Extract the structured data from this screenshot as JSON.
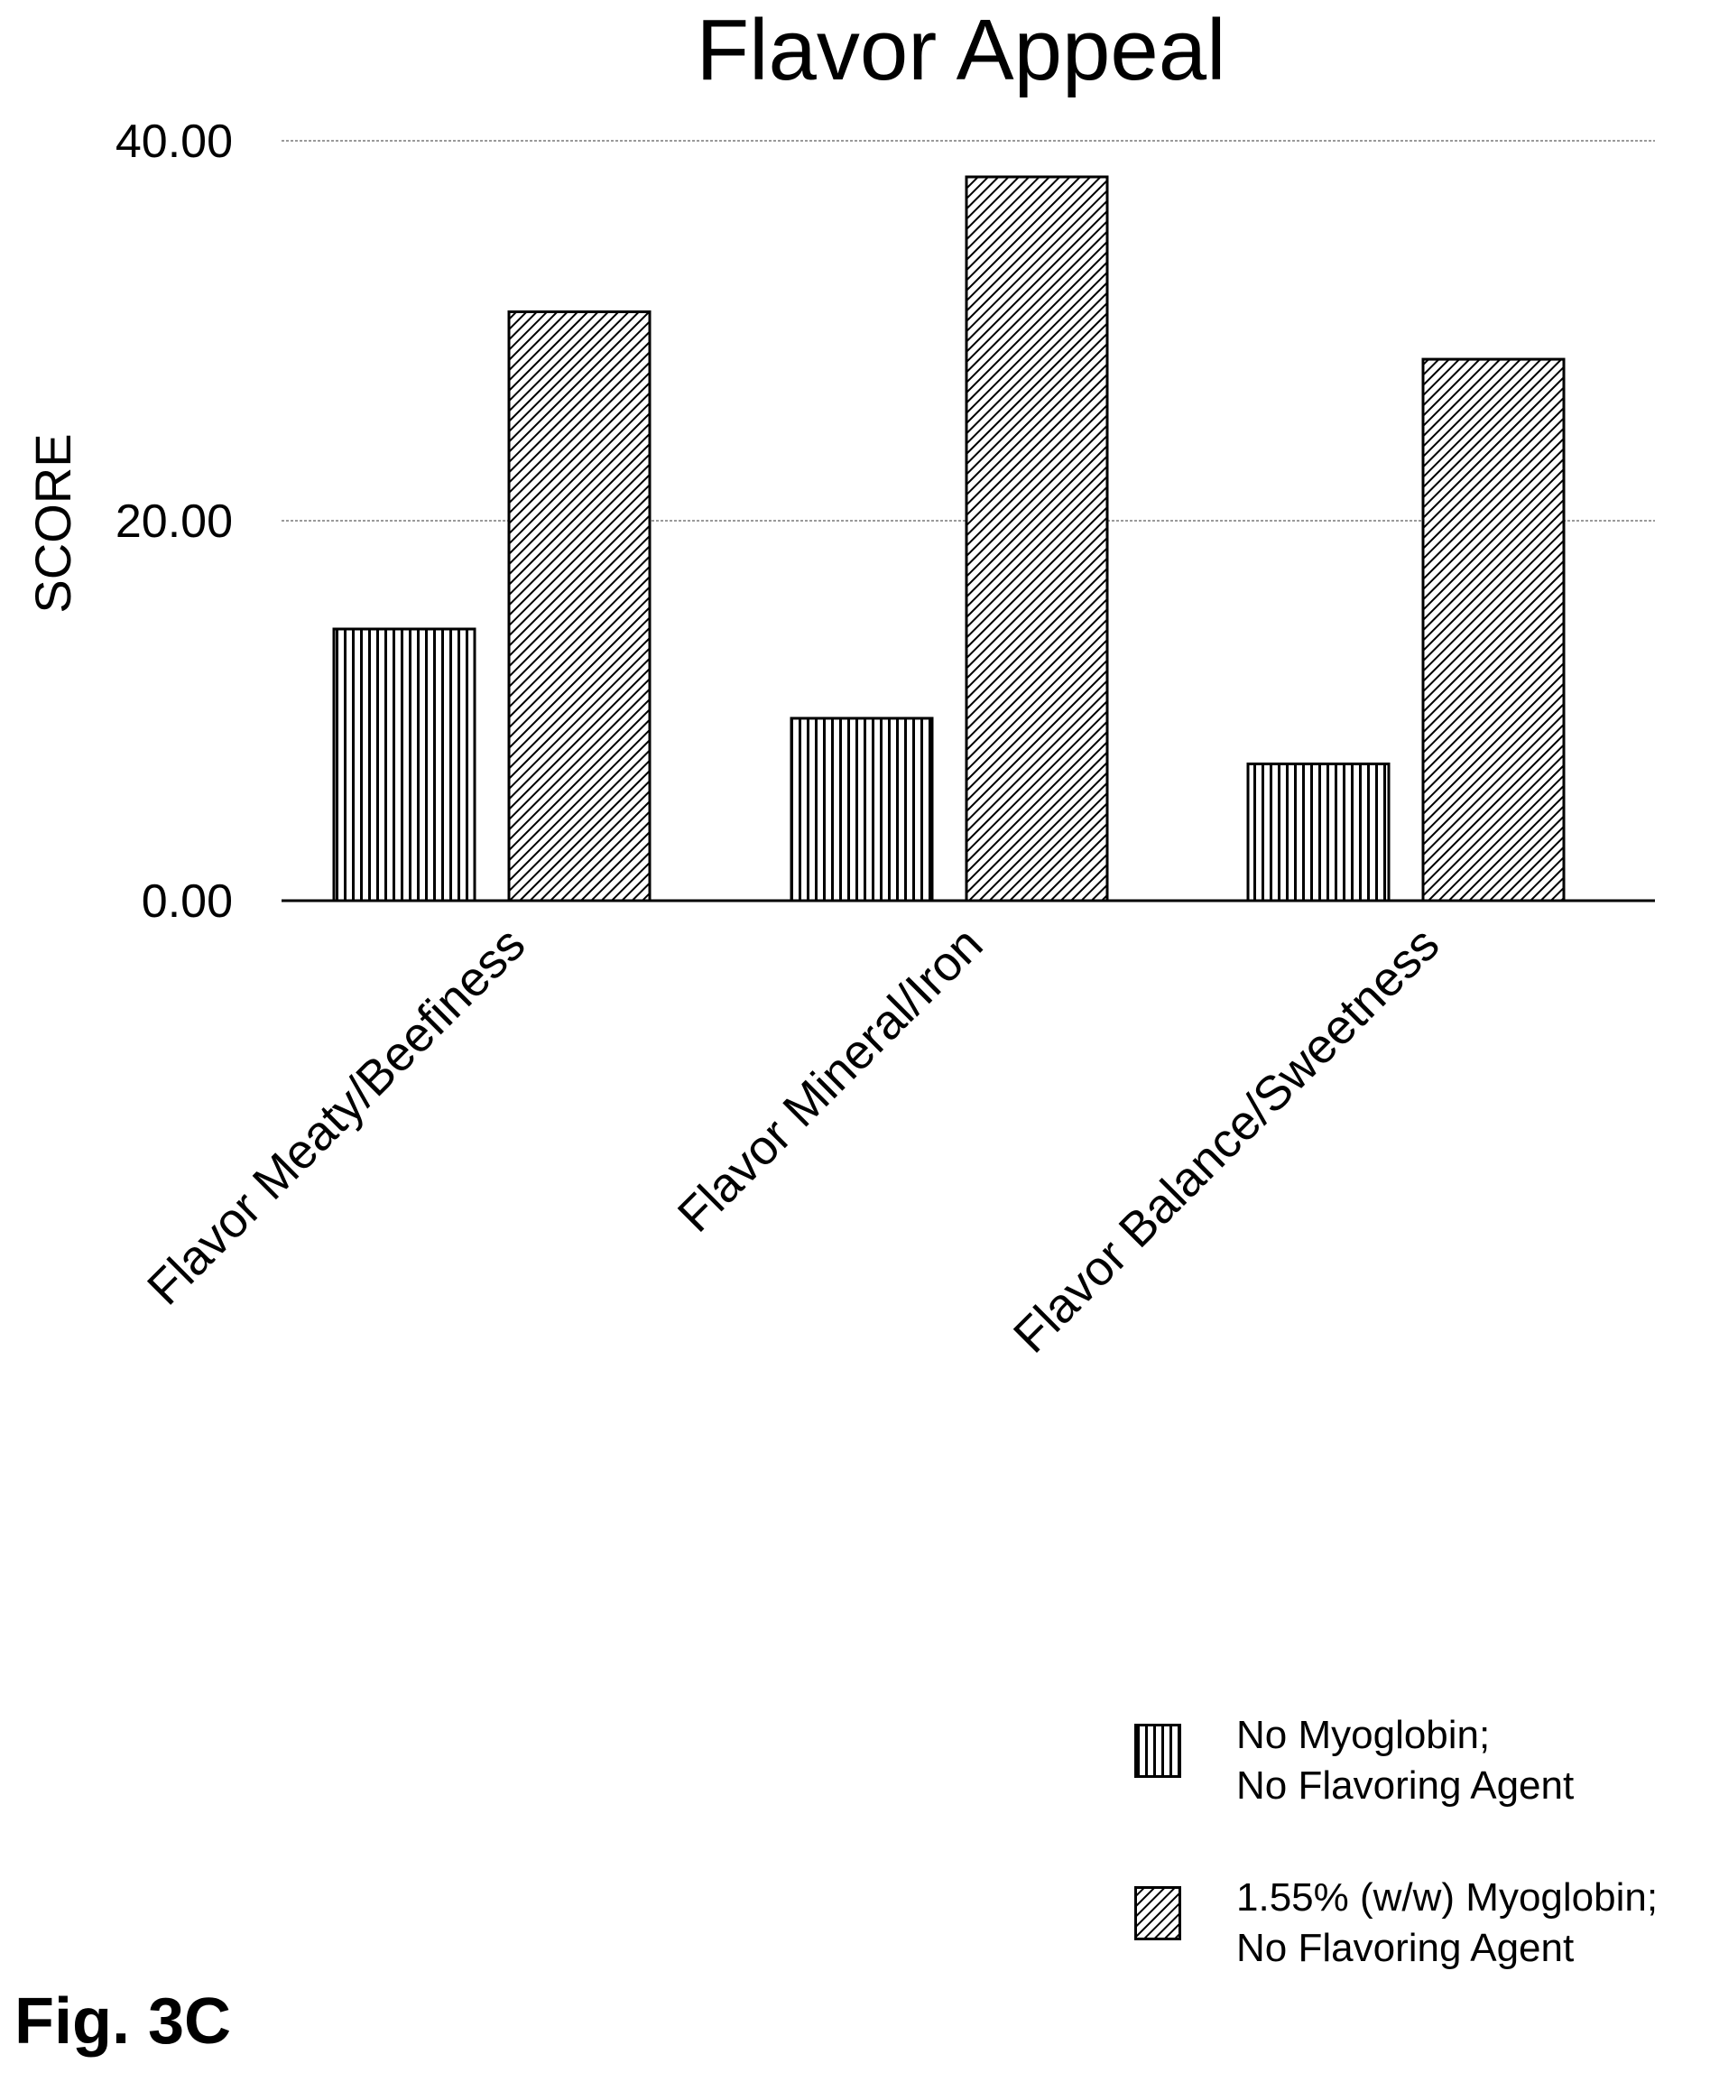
{
  "chart_data": {
    "type": "bar",
    "title": "Flavor Appeal",
    "ylabel": "SCORE",
    "xlabel": "",
    "ylim": [
      0,
      40
    ],
    "yticks": [
      0,
      20,
      40
    ],
    "ytick_labels": [
      "0.00",
      "20.00",
      "40.00"
    ],
    "grid": true,
    "categories": [
      "Flavor Meaty/Beefiness",
      "Flavor Mineral/Iron",
      "Flavor Balance/Sweetness"
    ],
    "series": [
      {
        "name": "No Myoglobin; No Flavoring Agent",
        "name_lines": [
          "No Myoglobin;",
          "No Flavoring Agent"
        ],
        "pattern": "vertical-lines",
        "values": [
          14.3,
          9.6,
          7.2
        ]
      },
      {
        "name": "1.55% (w/w) Myoglobin; No Flavoring Agent",
        "name_lines": [
          "1.55% (w/w) Myoglobin;",
          "No Flavoring Agent"
        ],
        "pattern": "diagonal-hatch",
        "values": [
          31.0,
          38.1,
          28.5
        ]
      }
    ],
    "legend_position": "bottom-right"
  },
  "figure_label": "Fig. 3C"
}
